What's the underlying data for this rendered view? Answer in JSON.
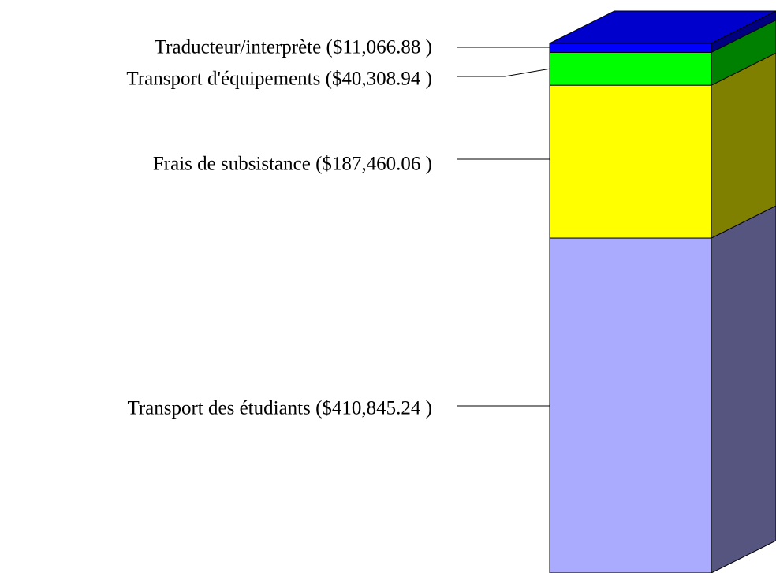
{
  "chart_data": {
    "type": "stacked_bar_3d",
    "series": [
      {
        "label": "Transport des étudiants ($410,845.24 )",
        "values": [
          410845.24
        ],
        "color": "#aaaaff",
        "side_color": "#555580"
      },
      {
        "label": "Frais de subsistance ($187,460.06 )",
        "values": [
          187460.06
        ],
        "color": "#ffff00",
        "side_color": "#808000"
      },
      {
        "label": "Transport d'équipements ($40,308.94 )",
        "values": [
          40308.94
        ],
        "color": "#00ff00",
        "side_color": "#008000"
      },
      {
        "label": "Traducteur/interprète ($11,066.88 )",
        "values": [
          11066.88
        ],
        "color": "#0000ff",
        "side_color": "#000080",
        "top_color": "#0000cc"
      }
    ]
  }
}
